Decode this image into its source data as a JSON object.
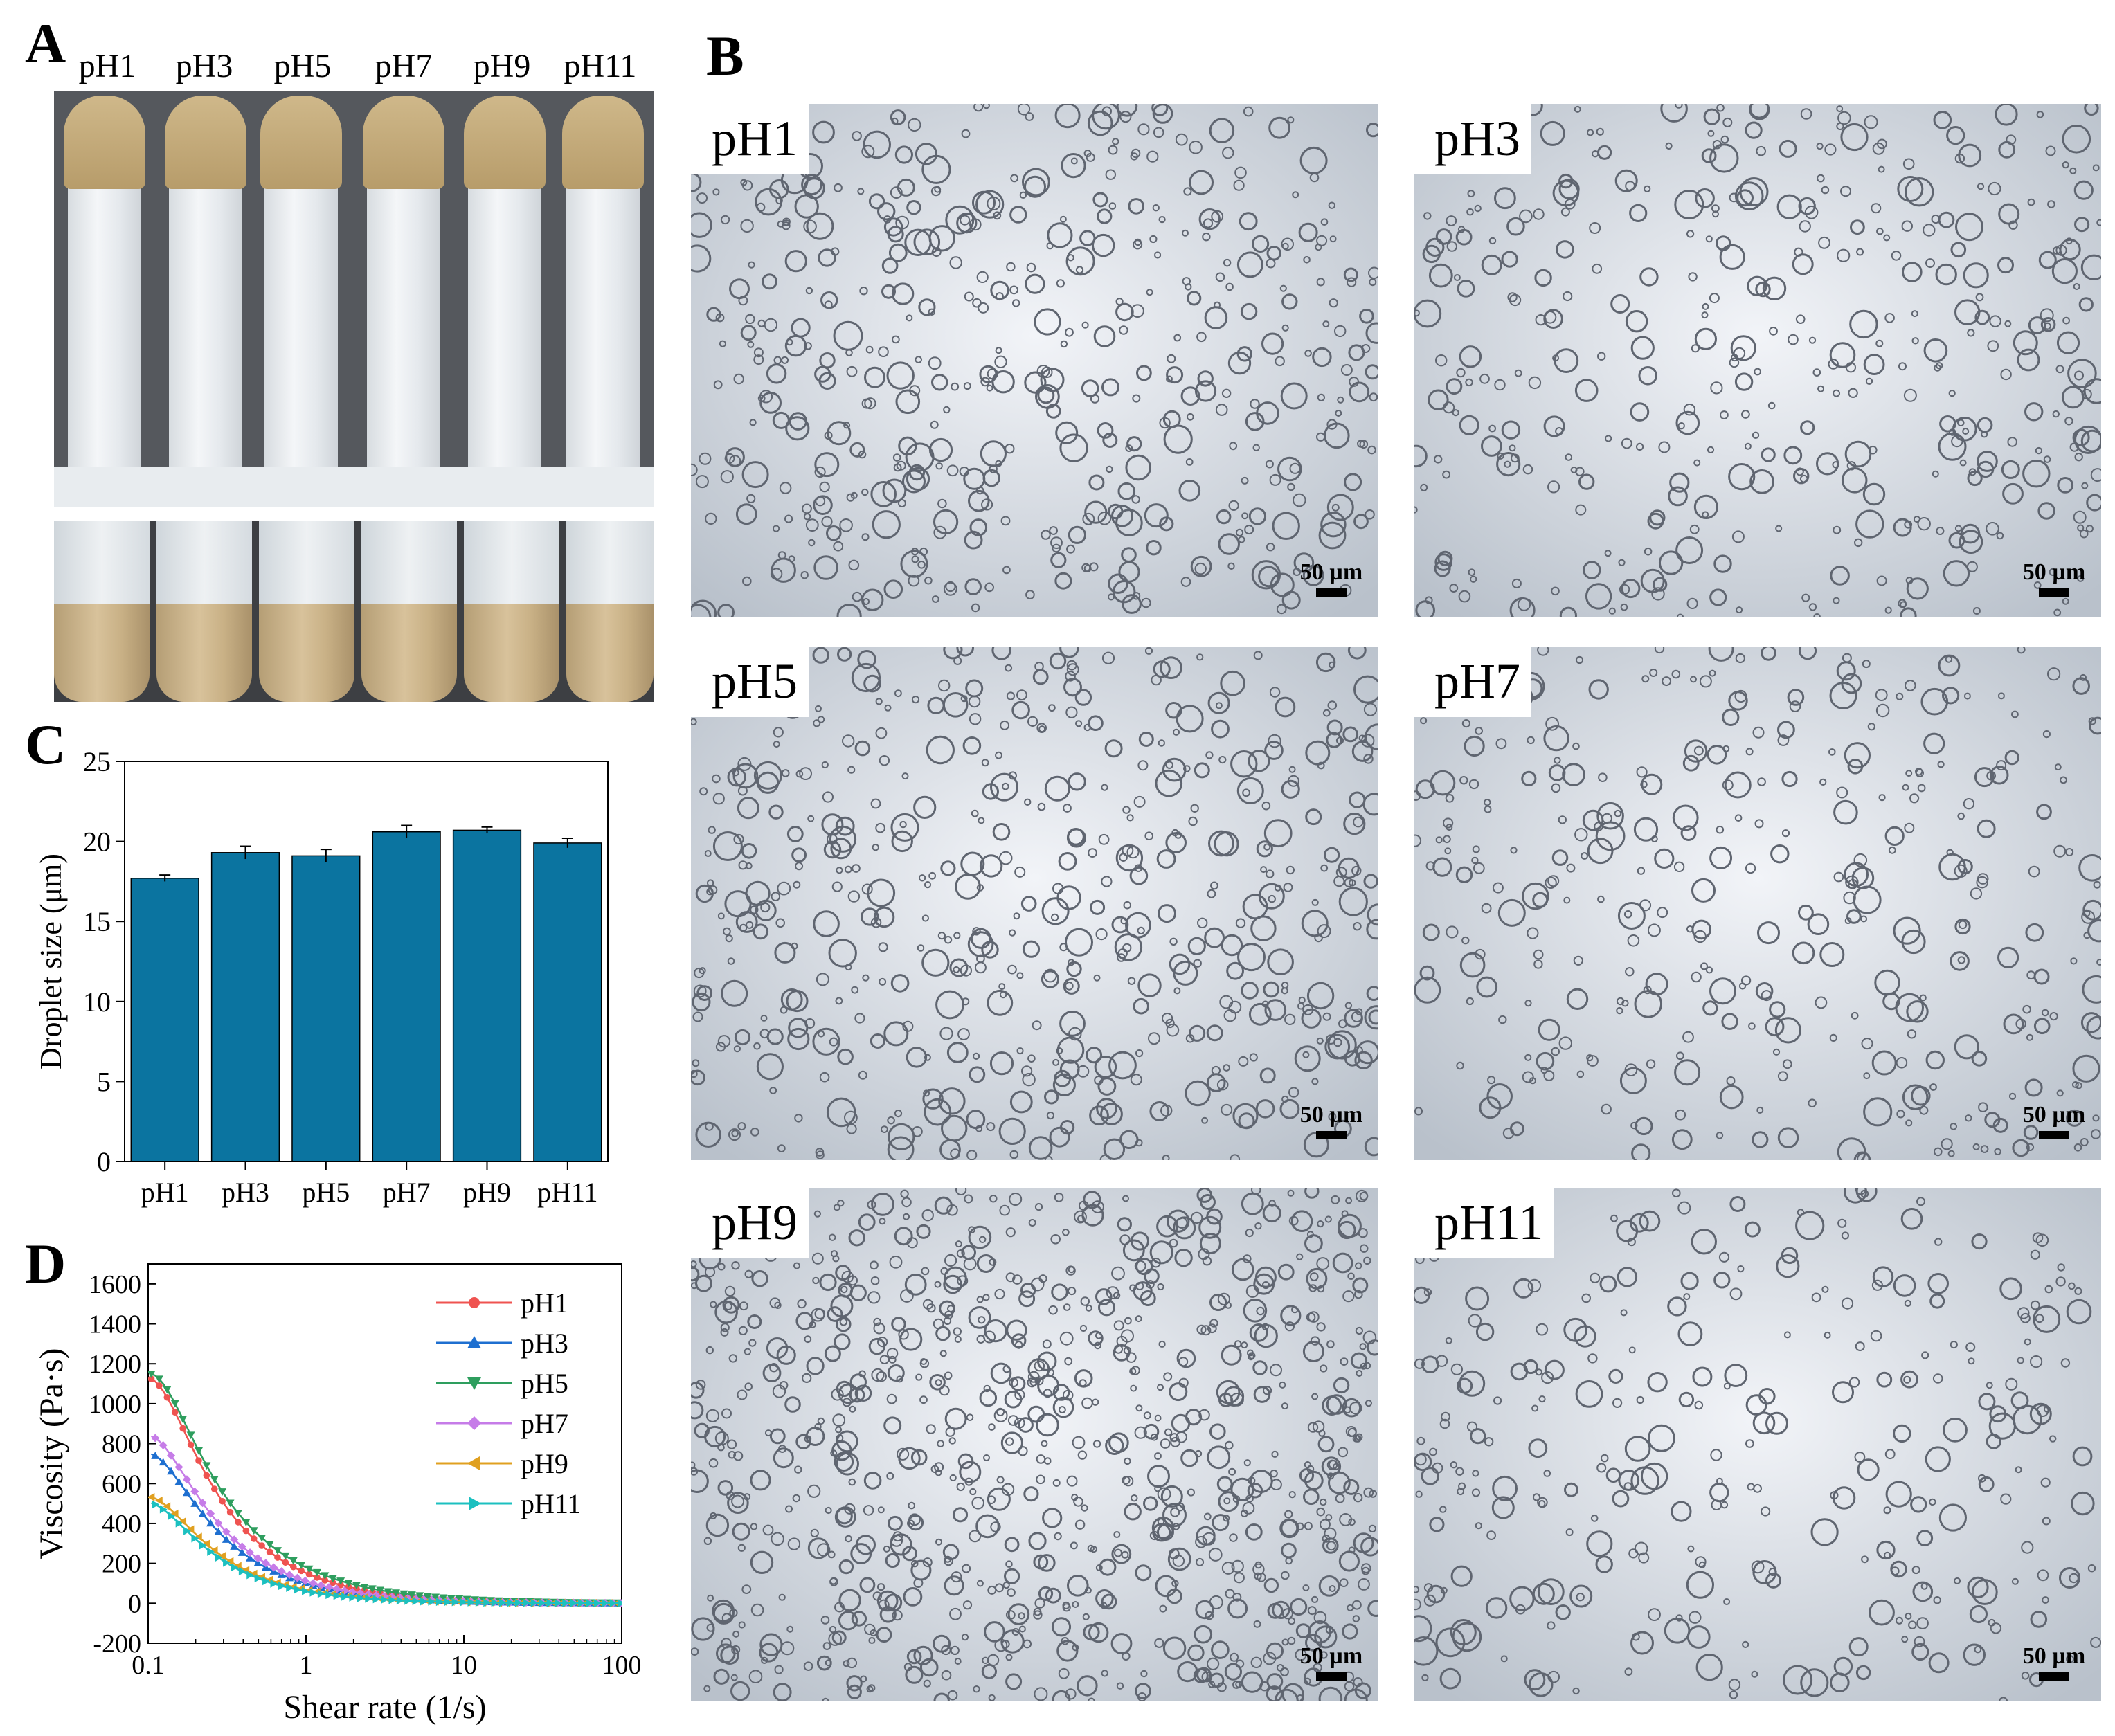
{
  "panels": {
    "A": "A",
    "B": "B",
    "C": "C",
    "D": "D"
  },
  "tube_labels": [
    "pH1",
    "pH3",
    "pH5",
    "pH7",
    "pH9",
    "pH11"
  ],
  "micrographs": [
    {
      "label": "pH1",
      "scale": "50 µm",
      "density": 0.55
    },
    {
      "label": "pH3",
      "scale": "50 µm",
      "density": 0.45
    },
    {
      "label": "pH5",
      "scale": "50 µm",
      "density": 0.6
    },
    {
      "label": "pH7",
      "scale": "50 µm",
      "density": 0.4
    },
    {
      "label": "pH9",
      "scale": "50 µm",
      "density": 1.0
    },
    {
      "label": "pH11",
      "scale": "50 µm",
      "density": 0.35
    }
  ],
  "colors": {
    "bar": "#0b74a0",
    "pH1": "#ef5350",
    "pH3": "#1e6fd0",
    "pH5": "#2e9e5e",
    "pH7": "#c67ce8",
    "pH9": "#e0a020",
    "pH11": "#1cc0c0"
  },
  "chart_data": [
    {
      "type": "bar",
      "categories": [
        "pH1",
        "pH3",
        "pH5",
        "pH7",
        "pH9",
        "pH11"
      ],
      "values": [
        17.7,
        19.3,
        19.1,
        20.6,
        20.7,
        19.9
      ],
      "errors": [
        0.2,
        0.4,
        0.4,
        0.4,
        0.2,
        0.3
      ],
      "ylabel": "Droplet size (μm)",
      "ylim": [
        0,
        25
      ],
      "yticks": [
        0,
        5,
        10,
        15,
        20,
        25
      ]
    },
    {
      "type": "line",
      "xscale": "log",
      "xlabel": "Shear rate (1/s)",
      "ylabel": "Viscosity (Pa·s)",
      "xlim": [
        0.1,
        100
      ],
      "ylim": [
        -200,
        1700
      ],
      "xticks": [
        0.1,
        1,
        10,
        100
      ],
      "xtick_labels": [
        "0.1",
        "1",
        "10",
        "100"
      ],
      "yticks": [
        -200,
        0,
        200,
        400,
        600,
        800,
        1000,
        1200,
        1400,
        1600
      ],
      "legend": "top-right",
      "series": [
        {
          "name": "pH1",
          "marker": "circle",
          "a": 152,
          "p": 0.995
        },
        {
          "name": "pH3",
          "marker": "triangle-up",
          "a": 100,
          "p": 1.0
        },
        {
          "name": "pH5",
          "marker": "triangle-down",
          "a": 180,
          "p": 0.93
        },
        {
          "name": "pH7",
          "marker": "diamond",
          "a": 112,
          "p": 1.0
        },
        {
          "name": "pH9",
          "marker": "triangle-left",
          "a": 68,
          "p": 1.02
        },
        {
          "name": "pH11",
          "marker": "triangle-right",
          "a": 60,
          "p": 1.05
        }
      ]
    }
  ]
}
